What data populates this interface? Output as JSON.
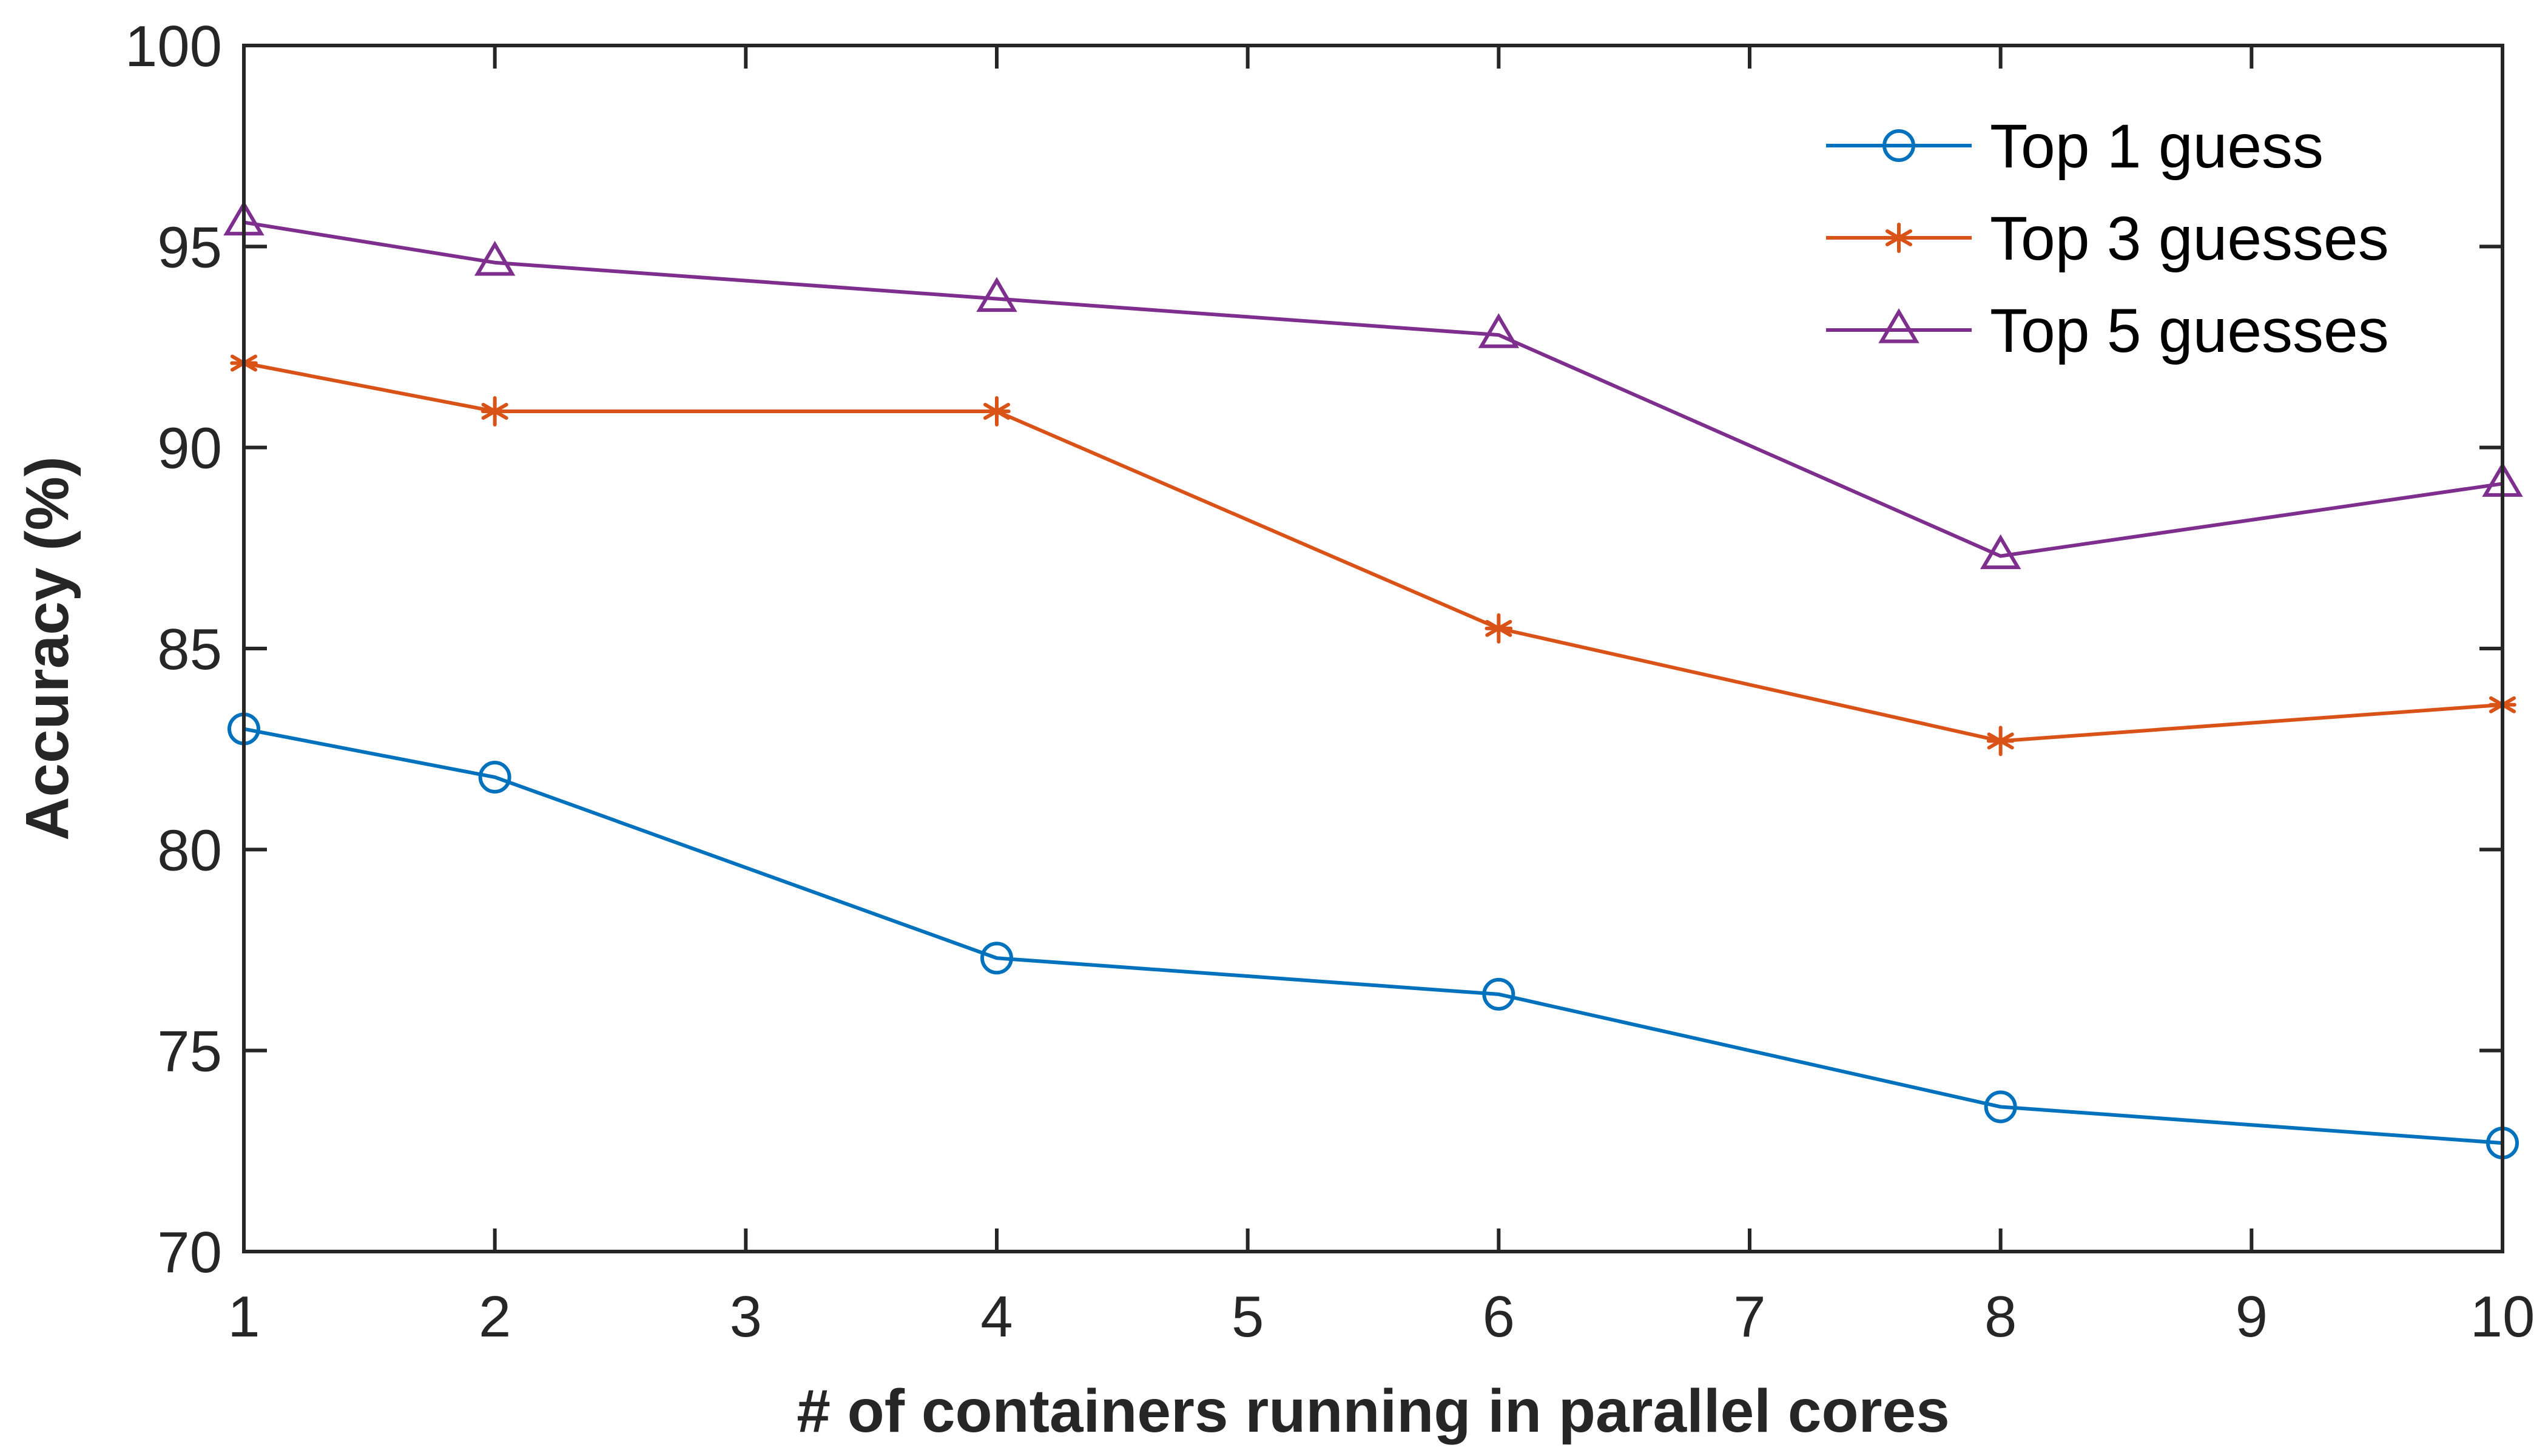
{
  "chart_data": {
    "type": "line",
    "title": "",
    "xlabel": "# of containers running in parallel cores",
    "ylabel": "Accuracy (%)",
    "xlim": [
      1,
      10
    ],
    "ylim": [
      70,
      100
    ],
    "xticks": [
      1,
      2,
      3,
      4,
      5,
      6,
      7,
      8,
      9,
      10
    ],
    "yticks": [
      70,
      75,
      80,
      85,
      90,
      95,
      100
    ],
    "grid": false,
    "legend_position": "top-right",
    "series": [
      {
        "name": "Top 1 guess",
        "color": "#0072BD",
        "marker": "circle",
        "x": [
          1,
          2,
          4,
          6,
          8,
          10
        ],
        "values": [
          83.0,
          81.8,
          77.3,
          76.4,
          73.6,
          72.7
        ]
      },
      {
        "name": "Top 3 guesses",
        "color": "#D95319",
        "marker": "asterisk",
        "x": [
          1,
          2,
          4,
          6,
          8,
          10
        ],
        "values": [
          92.1,
          90.9,
          90.9,
          85.5,
          82.7,
          83.6
        ]
      },
      {
        "name": "Top 5 guesses",
        "color": "#7E2F8E",
        "marker": "triangle",
        "x": [
          1,
          2,
          4,
          6,
          8,
          10
        ],
        "values": [
          95.6,
          94.6,
          93.7,
          92.8,
          87.3,
          89.1
        ]
      }
    ]
  }
}
